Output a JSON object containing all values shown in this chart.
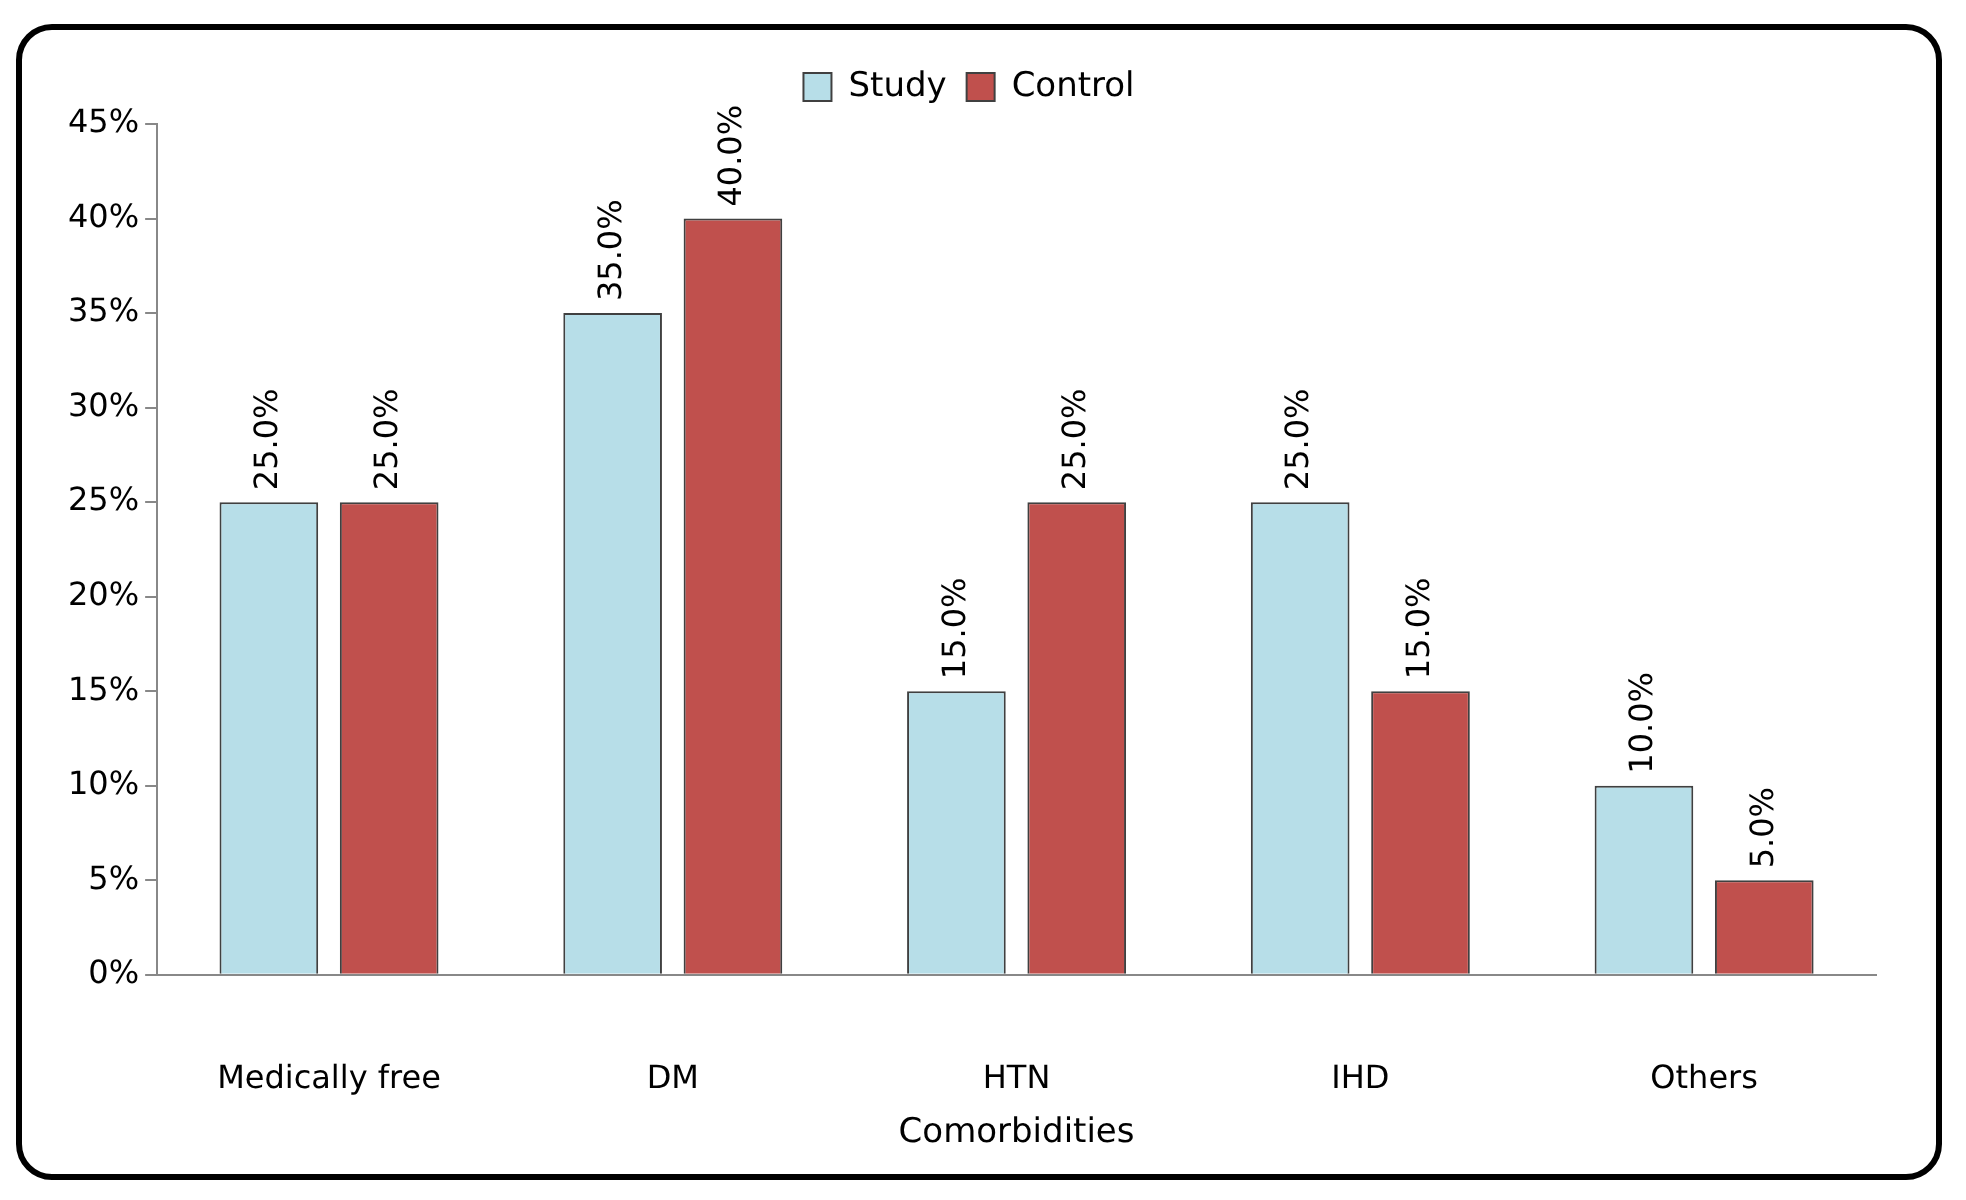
{
  "chart_data": {
    "type": "bar",
    "xlabel": "Comorbidities",
    "categories": [
      "Medically free",
      "DM",
      "HTN",
      "IHD",
      "Others"
    ],
    "series": [
      {
        "name": "Study",
        "color": "#b7dee8",
        "values": [
          25,
          35,
          15,
          25,
          10
        ],
        "value_labels": [
          "25.0%",
          "35.0%",
          "15.0%",
          "25.0%",
          "10.0%"
        ]
      },
      {
        "name": "Control",
        "color": "#c0504d",
        "values": [
          25,
          40,
          25,
          15,
          5
        ],
        "value_labels": [
          "25.0%",
          "40.0%",
          "25.0%",
          "15.0%",
          "5.0%"
        ]
      }
    ],
    "ylim": [
      0,
      45
    ],
    "yticks": [
      {
        "value": 0,
        "label": "0%"
      },
      {
        "value": 5,
        "label": "5%"
      },
      {
        "value": 10,
        "label": "10%"
      },
      {
        "value": 15,
        "label": "15%"
      },
      {
        "value": 20,
        "label": "20%"
      },
      {
        "value": 25,
        "label": "25%"
      },
      {
        "value": 30,
        "label": "30%"
      },
      {
        "value": 35,
        "label": "35%"
      },
      {
        "value": 40,
        "label": "40%"
      },
      {
        "value": 45,
        "label": "45%"
      }
    ],
    "grid": false,
    "legend": "top"
  }
}
